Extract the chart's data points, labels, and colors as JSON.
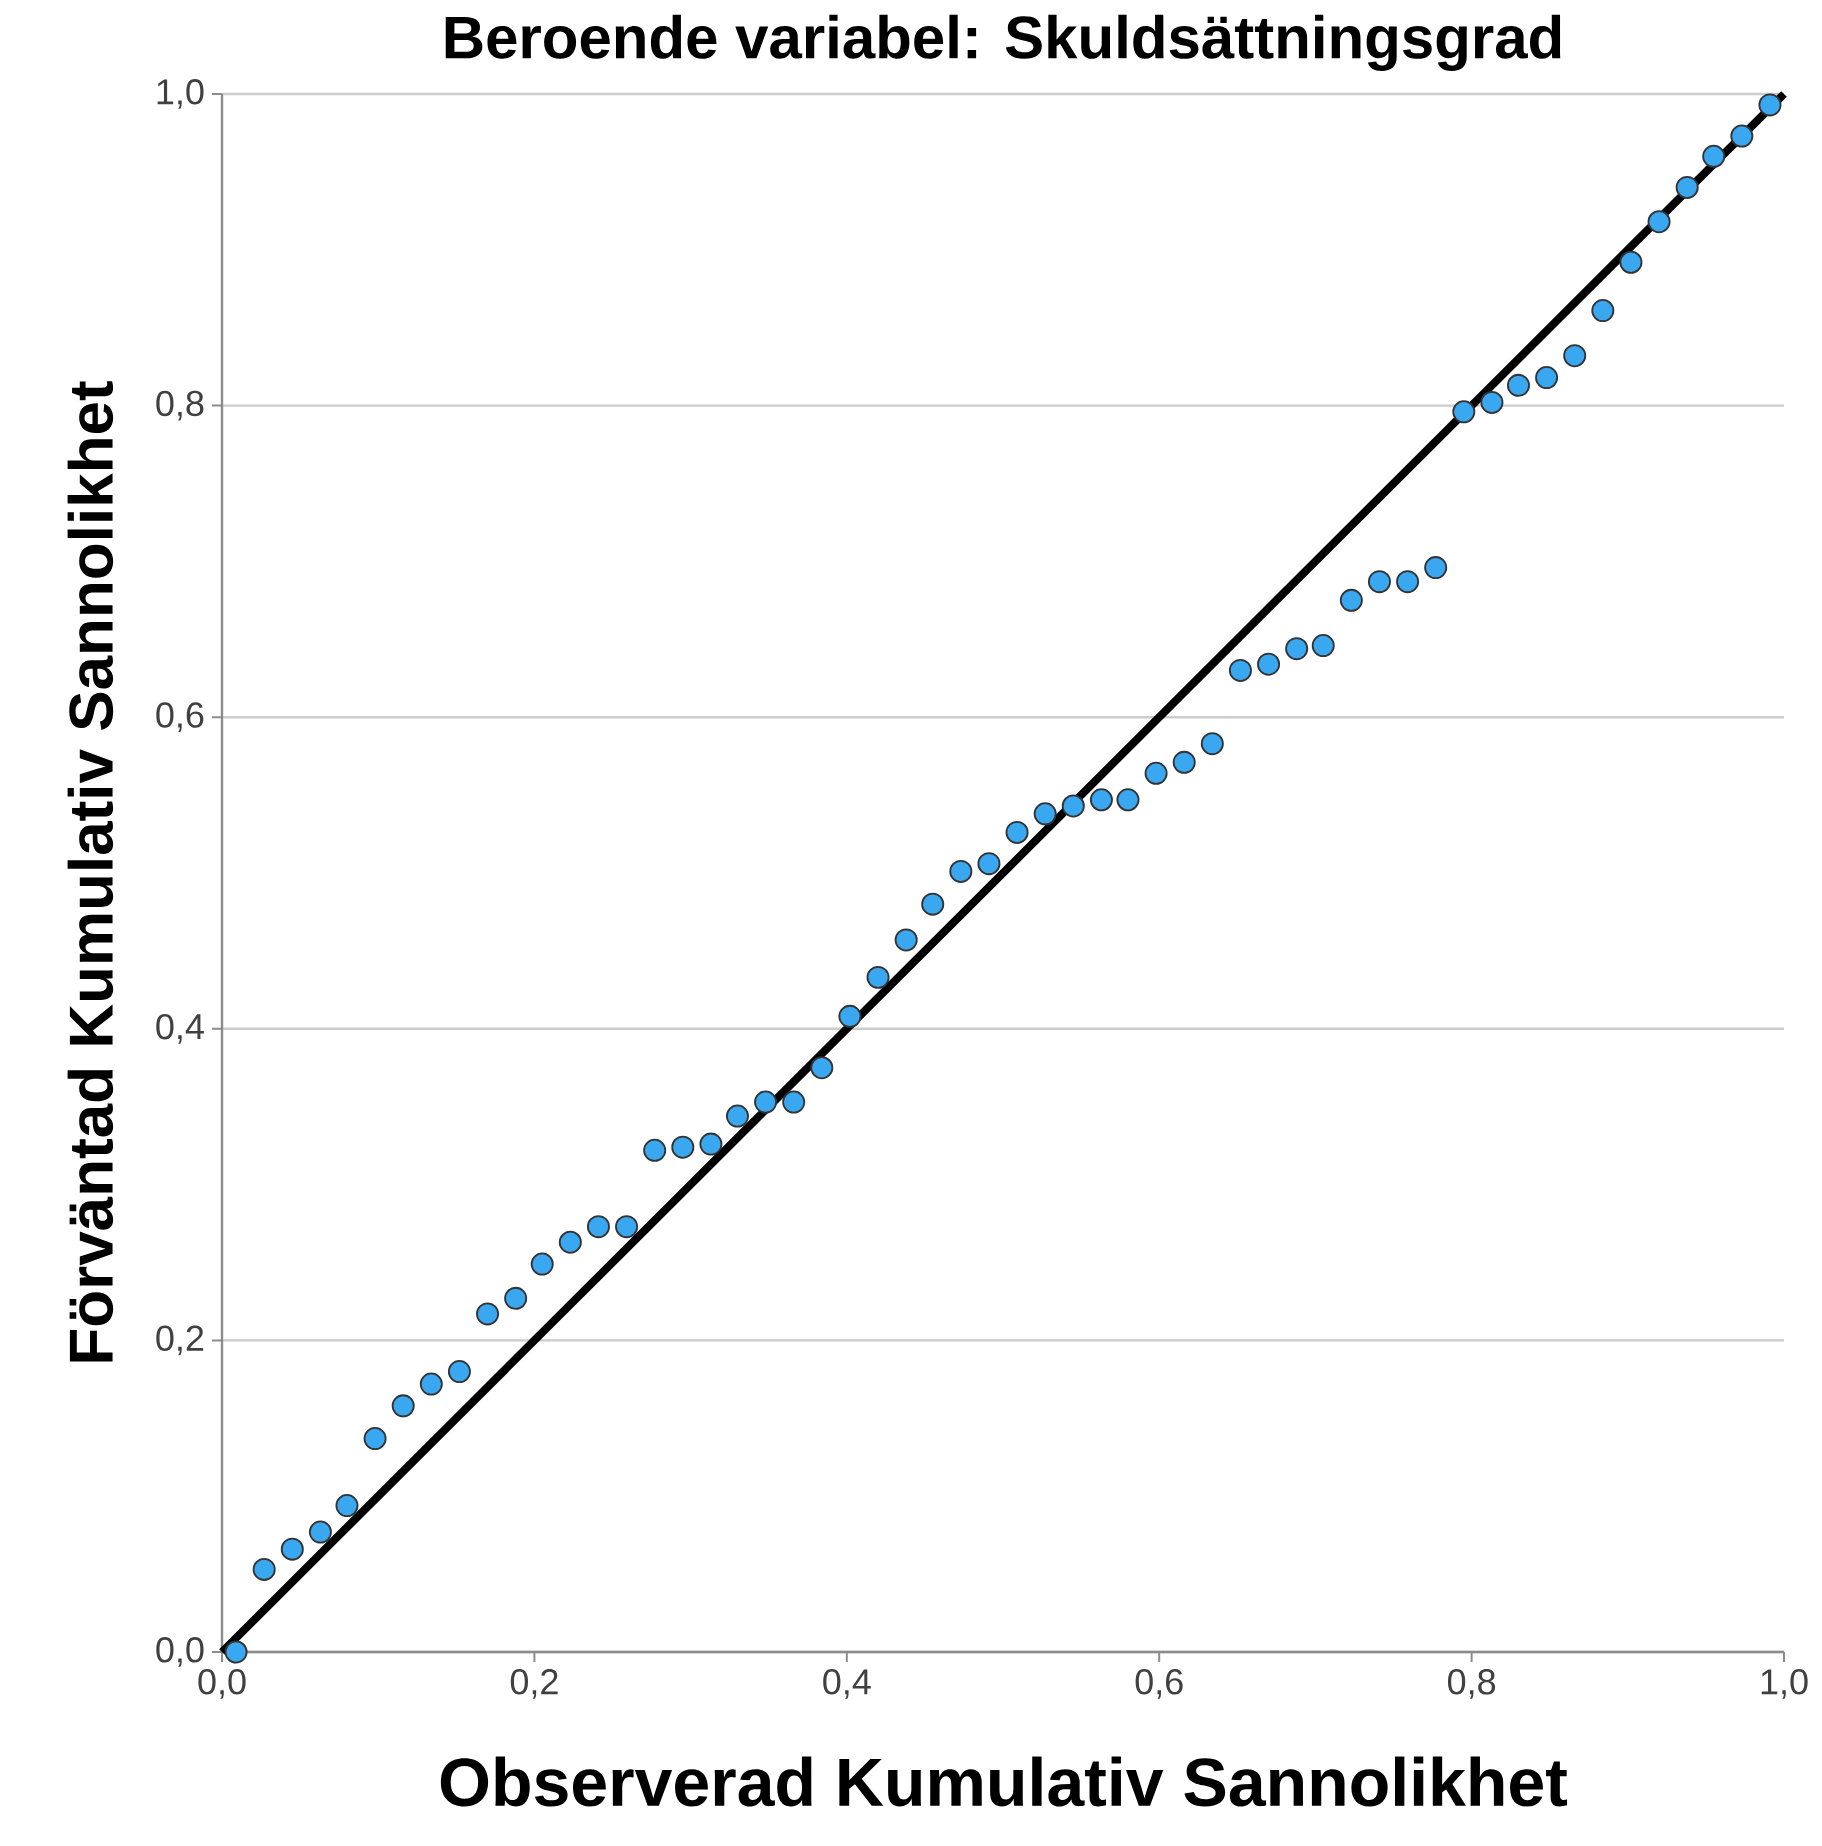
{
  "chart_data": {
    "type": "scatter",
    "title": "Beroende variabel: Skuldsättningsgrad",
    "xlabel": "Observerad Kumulativ Sannolikhet",
    "ylabel": "Förväntad Kumulativ Sannolikhet",
    "xlim": [
      0,
      1
    ],
    "ylim": [
      0,
      1
    ],
    "xticks": [
      {
        "value": 0,
        "label": "0,0"
      },
      {
        "value": 0.2,
        "label": "0,2"
      },
      {
        "value": 0.4,
        "label": "0,4"
      },
      {
        "value": 0.6,
        "label": "0,6"
      },
      {
        "value": 0.8,
        "label": "0,8"
      },
      {
        "value": 1,
        "label": "1,0"
      }
    ],
    "yticks": [
      {
        "value": 0,
        "label": "0,0"
      },
      {
        "value": 0.2,
        "label": "0,2"
      },
      {
        "value": 0.4,
        "label": "0,4"
      },
      {
        "value": 0.6,
        "label": "0,6"
      },
      {
        "value": 0.8,
        "label": "0,8"
      },
      {
        "value": 1,
        "label": "1,0"
      }
    ],
    "grid": "y",
    "series": [
      {
        "type": "scatter",
        "marker": "circle",
        "color": "#3aa8f0",
        "x": [
          0.009,
          0.027,
          0.045,
          0.063,
          0.08,
          0.098,
          0.116,
          0.134,
          0.152,
          0.17,
          0.188,
          0.205,
          0.223,
          0.241,
          0.259,
          0.277,
          0.295,
          0.313,
          0.33,
          0.348,
          0.366,
          0.384,
          0.402,
          0.42,
          0.438,
          0.455,
          0.473,
          0.491,
          0.509,
          0.527,
          0.545,
          0.563,
          0.58,
          0.598,
          0.616,
          0.634,
          0.652,
          0.67,
          0.688,
          0.705,
          0.723,
          0.741,
          0.759,
          0.777,
          0.795,
          0.813,
          0.83,
          0.848,
          0.866,
          0.884,
          0.902,
          0.92,
          0.938,
          0.955,
          0.973,
          0.991
        ],
        "values": [
          0.0,
          0.053,
          0.066,
          0.077,
          0.094,
          0.137,
          0.158,
          0.172,
          0.18,
          0.217,
          0.227,
          0.249,
          0.263,
          0.273,
          0.273,
          0.322,
          0.324,
          0.326,
          0.344,
          0.353,
          0.353,
          0.375,
          0.408,
          0.433,
          0.457,
          0.48,
          0.501,
          0.506,
          0.526,
          0.538,
          0.543,
          0.547,
          0.547,
          0.564,
          0.571,
          0.583,
          0.63,
          0.634,
          0.644,
          0.646,
          0.675,
          0.687,
          0.687,
          0.696,
          0.796,
          0.802,
          0.813,
          0.818,
          0.832,
          0.861,
          0.892,
          0.918,
          0.94,
          0.96,
          0.973,
          0.993
        ]
      },
      {
        "type": "line",
        "marker": "none",
        "color": "#000000",
        "x": [
          0,
          1
        ],
        "values": [
          0,
          1
        ]
      }
    ]
  }
}
